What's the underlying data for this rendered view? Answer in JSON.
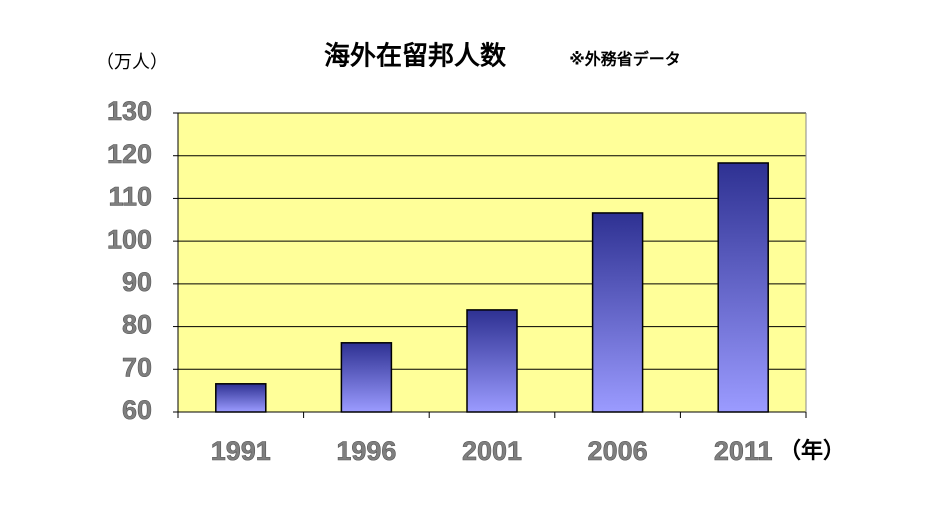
{
  "chart_data": {
    "type": "bar",
    "title": "海外在留邦人数",
    "subtitle": "※外務省データ",
    "y_label": "（万人）",
    "x_label": "（年）",
    "categories": [
      "1991",
      "1996",
      "2001",
      "2006",
      "2011"
    ],
    "values": [
      66.6,
      76.2,
      83.9,
      106.6,
      118.3
    ],
    "color": [
      "#2e3192",
      "#9b9bff"
    ],
    "ylim": [
      60,
      130
    ],
    "yticks": [
      60,
      70,
      80,
      90,
      100,
      110,
      120,
      130
    ],
    "grid": true
  }
}
